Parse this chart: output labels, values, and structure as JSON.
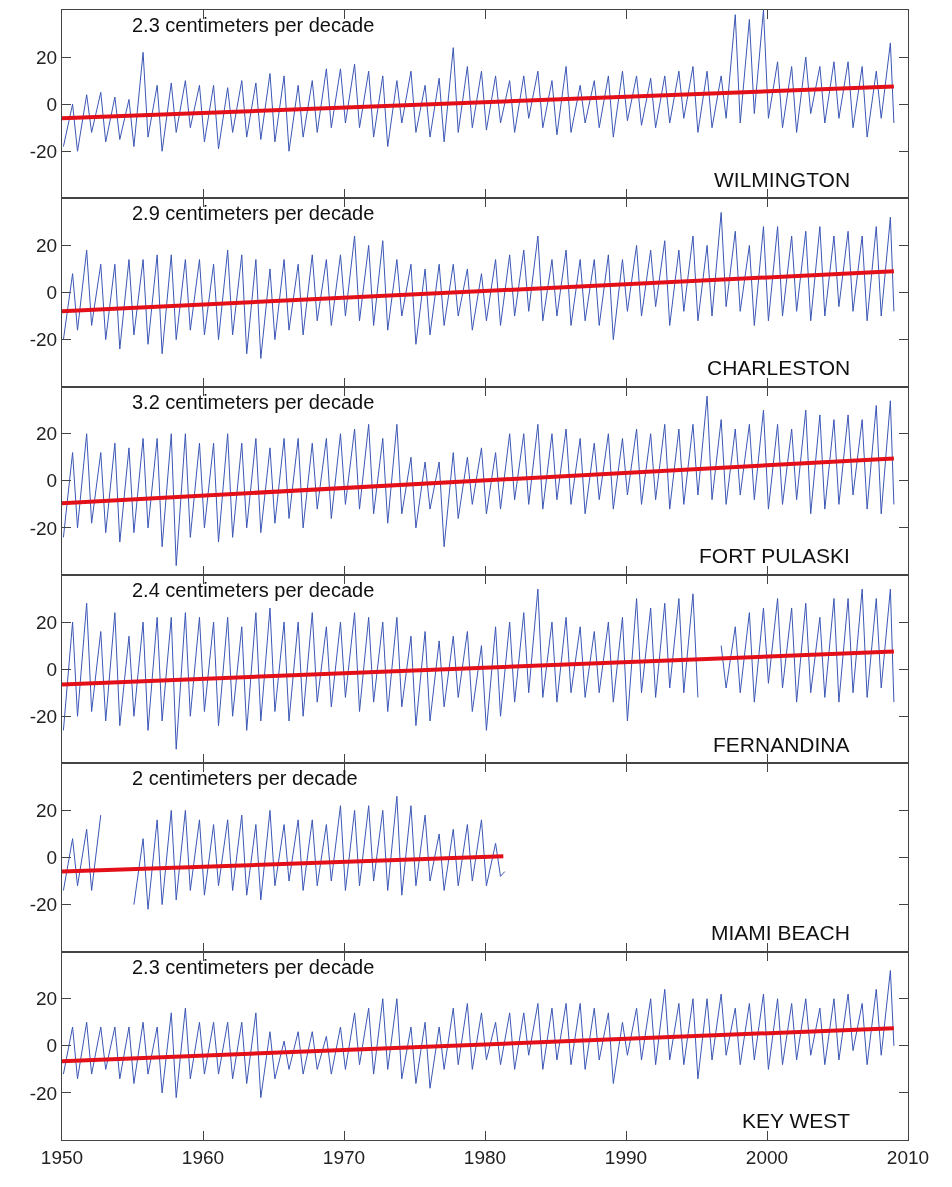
{
  "chart_data": [
    {
      "type": "line",
      "title": "WILMINGTON",
      "annotations": [
        "2.3 centimeters per decade"
      ],
      "xlim": [
        1950,
        2010
      ],
      "xticks": [
        1950,
        1960,
        1970,
        1980,
        1990,
        2000,
        2010
      ],
      "ylim": [
        -40,
        40
      ],
      "yticks": [
        -20,
        0,
        20
      ],
      "tick_labels": "y",
      "x": [
        1950.1,
        1950.75,
        1951.1,
        1951.75,
        1952.1,
        1952.75,
        1953.1,
        1953.75,
        1954.1,
        1954.75,
        1955.1,
        1955.75,
        1956.1,
        1956.75,
        1957.1,
        1957.75,
        1958.1,
        1958.75,
        1959.1,
        1959.75,
        1960.1,
        1960.75,
        1961.1,
        1961.75,
        1962.1,
        1962.75,
        1963.1,
        1963.75,
        1964.1,
        1964.75,
        1965.1,
        1965.75,
        1966.1,
        1966.75,
        1967.1,
        1967.75,
        1968.1,
        1968.75,
        1969.1,
        1969.75,
        1970.1,
        1970.75,
        1971.1,
        1971.75,
        1972.1,
        1972.75,
        1973.1,
        1973.75,
        1974.1,
        1974.75,
        1975.1,
        1975.75,
        1976.1,
        1976.75,
        1977.1,
        1977.75,
        1978.1,
        1978.75,
        1979.1,
        1979.75,
        1980.1,
        1980.75,
        1981.1,
        1981.75,
        1982.1,
        1982.75,
        1983.1,
        1983.75,
        1984.1,
        1984.75,
        1985.1,
        1985.75,
        1986.1,
        1986.75,
        1987.1,
        1987.75,
        1988.1,
        1988.75,
        1989.1,
        1989.75,
        1990.1,
        1990.75,
        1991.1,
        1991.75,
        1992.1,
        1992.75,
        1993.1,
        1993.75,
        1994.1,
        1994.75,
        1995.1,
        1995.75,
        1996.1,
        1996.75,
        1997.1,
        1997.75,
        1998.1,
        1998.75,
        1999.1,
        1999.75,
        2000.1,
        2000.75,
        2001.1,
        2001.75,
        2002.1,
        2002.75,
        2003.1,
        2003.75,
        2004.1,
        2004.75,
        2005.1,
        2005.75,
        2006.1,
        2006.75,
        2007.1,
        2007.75,
        2008.1,
        2008.75,
        2009
      ],
      "series": [
        {
          "color": "#3b57b5",
          "values": [
            -18,
            0,
            -20,
            4,
            -12,
            5,
            -16,
            3,
            -15,
            2,
            -18,
            22,
            -14,
            8,
            -20,
            9,
            -12,
            10,
            -10,
            8,
            -16,
            8,
            -19,
            7,
            -12,
            10,
            -14,
            9,
            -15,
            13,
            -16,
            12,
            -20,
            8,
            -14,
            10,
            -12,
            15,
            -10,
            15,
            -8,
            17,
            -10,
            14,
            -14,
            12,
            -18,
            10,
            -8,
            14,
            -12,
            8,
            -14,
            11,
            -16,
            24,
            -12,
            16,
            -10,
            14,
            -11,
            12,
            -8,
            10,
            -12,
            12,
            -6,
            14,
            -10,
            10,
            -13,
            16,
            -12,
            8,
            -8,
            10,
            -10,
            12,
            -14,
            14,
            -7,
            12,
            -9,
            11,
            -10,
            12,
            -8,
            14,
            -6,
            16,
            -12,
            14,
            -10,
            12,
            -6,
            38,
            -8,
            36,
            -4,
            40,
            -6,
            18,
            -10,
            16,
            -12,
            20,
            -4,
            16,
            -8,
            18,
            -6,
            18,
            -10,
            16,
            -14,
            14,
            -6,
            26,
            -8
          ]
        },
        {
          "color": "#e3101a",
          "x": [
            1950,
            2009
          ],
          "values": [
            -6,
            7.5
          ]
        }
      ]
    },
    {
      "type": "line",
      "title": "CHARLESTON",
      "annotations": [
        "2.9 centimeters per decade"
      ],
      "xlim": [
        1950,
        2010
      ],
      "xticks": [
        1950,
        1960,
        1970,
        1980,
        1990,
        2000,
        2010
      ],
      "ylim": [
        -40,
        40
      ],
      "yticks": [
        -20,
        0,
        20
      ],
      "tick_labels": "y",
      "x": [
        1950.1,
        1950.75,
        1951.1,
        1951.75,
        1952.1,
        1952.75,
        1953.1,
        1953.75,
        1954.1,
        1954.75,
        1955.1,
        1955.75,
        1956.1,
        1956.75,
        1957.1,
        1957.75,
        1958.1,
        1958.75,
        1959.1,
        1959.75,
        1960.1,
        1960.75,
        1961.1,
        1961.75,
        1962.1,
        1962.75,
        1963.1,
        1963.75,
        1964.1,
        1964.75,
        1965.1,
        1965.75,
        1966.1,
        1966.75,
        1967.1,
        1967.75,
        1968.1,
        1968.75,
        1969.1,
        1969.75,
        1970.1,
        1970.75,
        1971.1,
        1971.75,
        1972.1,
        1972.75,
        1973.1,
        1973.75,
        1974.1,
        1974.75,
        1975.1,
        1975.75,
        1976.1,
        1976.75,
        1977.1,
        1977.75,
        1978.1,
        1978.75,
        1979.1,
        1979.75,
        1980.1,
        1980.75,
        1981.1,
        1981.75,
        1982.1,
        1982.75,
        1983.1,
        1983.75,
        1984.1,
        1984.75,
        1985.1,
        1985.75,
        1986.1,
        1986.75,
        1987.1,
        1987.75,
        1988.1,
        1988.75,
        1989.1,
        1989.75,
        1990.1,
        1990.75,
        1991.1,
        1991.75,
        1992.1,
        1992.75,
        1993.1,
        1993.75,
        1994.1,
        1994.75,
        1995.1,
        1995.75,
        1996.1,
        1996.75,
        1997.1,
        1997.75,
        1998.1,
        1998.75,
        1999.1,
        1999.75,
        2000.1,
        2000.75,
        2001.1,
        2001.75,
        2002.1,
        2002.75,
        2003.1,
        2003.75,
        2004.1,
        2004.75,
        2005.1,
        2005.75,
        2006.1,
        2006.75,
        2007.1,
        2007.75,
        2008.1,
        2008.75,
        2009
      ],
      "series": [
        {
          "color": "#3b57b5",
          "values": [
            -20,
            8,
            -16,
            18,
            -14,
            12,
            -20,
            12,
            -24,
            14,
            -18,
            14,
            -22,
            16,
            -26,
            16,
            -20,
            14,
            -16,
            14,
            -18,
            12,
            -20,
            18,
            -18,
            16,
            -26,
            14,
            -28,
            10,
            -20,
            14,
            -16,
            12,
            -18,
            16,
            -12,
            14,
            -14,
            16,
            -10,
            24,
            -12,
            20,
            -14,
            22,
            -16,
            14,
            -10,
            12,
            -22,
            10,
            -18,
            12,
            -14,
            12,
            -10,
            10,
            -16,
            8,
            -12,
            14,
            -14,
            16,
            -10,
            18,
            -8,
            24,
            -12,
            14,
            -10,
            18,
            -14,
            14,
            -12,
            14,
            -14,
            16,
            -20,
            14,
            -8,
            20,
            -10,
            18,
            -6,
            22,
            -14,
            18,
            -8,
            24,
            -12,
            20,
            -10,
            34,
            -6,
            26,
            -8,
            20,
            -14,
            28,
            -12,
            28,
            -10,
            24,
            -8,
            26,
            -12,
            28,
            -10,
            24,
            -6,
            26,
            -8,
            24,
            -12,
            28,
            -10,
            32,
            -8
          ]
        },
        {
          "color": "#e3101a",
          "x": [
            1950,
            2009
          ],
          "values": [
            -8,
            9
          ]
        }
      ]
    },
    {
      "type": "line",
      "title": "FORT PULASKI",
      "annotations": [
        "3.2 centimeters per decade"
      ],
      "xlim": [
        1950,
        2010
      ],
      "xticks": [
        1950,
        1960,
        1970,
        1980,
        1990,
        2000,
        2010
      ],
      "ylim": [
        -40,
        40
      ],
      "yticks": [
        -20,
        0,
        20
      ],
      "tick_labels": "y",
      "x": [
        1950.1,
        1950.75,
        1951.1,
        1951.75,
        1952.1,
        1952.75,
        1953.1,
        1953.75,
        1954.1,
        1954.75,
        1955.1,
        1955.75,
        1956.1,
        1956.75,
        1957.1,
        1957.75,
        1958.1,
        1958.75,
        1959.1,
        1959.75,
        1960.1,
        1960.75,
        1961.1,
        1961.75,
        1962.1,
        1962.75,
        1963.1,
        1963.75,
        1964.1,
        1964.75,
        1965.1,
        1965.75,
        1966.1,
        1966.75,
        1967.1,
        1967.75,
        1968.1,
        1968.75,
        1969.1,
        1969.75,
        1970.1,
        1970.75,
        1971.1,
        1971.75,
        1972.1,
        1972.75,
        1973.1,
        1973.75,
        1974.1,
        1974.75,
        1975.1,
        1975.75,
        1976.1,
        1976.75,
        1977.1,
        1977.75,
        1978.1,
        1978.75,
        1979.1,
        1979.75,
        1980.1,
        1980.75,
        1981.1,
        1981.75,
        1982.1,
        1982.75,
        1983.1,
        1983.75,
        1984.1,
        1984.75,
        1985.1,
        1985.75,
        1986.1,
        1986.75,
        1987.1,
        1987.75,
        1988.1,
        1988.75,
        1989.1,
        1989.75,
        1990.1,
        1990.75,
        1991.1,
        1991.75,
        1992.1,
        1992.75,
        1993.1,
        1993.75,
        1994.1,
        1994.75,
        1995.1,
        1995.75,
        1996.1,
        1996.75,
        1997.1,
        1997.75,
        1998.1,
        1998.75,
        1999.1,
        1999.75,
        2000.1,
        2000.75,
        2001.1,
        2001.75,
        2002.1,
        2002.75,
        2003.1,
        2003.75,
        2004.1,
        2004.75,
        2005.1,
        2005.75,
        2006.1,
        2006.75,
        2007.1,
        2007.75,
        2008.1,
        2008.75,
        2009
      ],
      "series": [
        {
          "color": "#3b57b5",
          "values": [
            -24,
            12,
            -20,
            20,
            -18,
            12,
            -22,
            16,
            -26,
            14,
            -22,
            18,
            -20,
            18,
            -28,
            20,
            -36,
            20,
            -24,
            16,
            -20,
            16,
            -26,
            20,
            -24,
            16,
            -20,
            18,
            -22,
            14,
            -18,
            18,
            -16,
            18,
            -20,
            16,
            -12,
            18,
            -16,
            20,
            -10,
            22,
            -12,
            24,
            -14,
            18,
            -18,
            24,
            -14,
            10,
            -20,
            8,
            -12,
            8,
            -28,
            12,
            -16,
            10,
            -10,
            14,
            -14,
            12,
            -12,
            20,
            -8,
            20,
            -10,
            24,
            -12,
            20,
            -8,
            22,
            -10,
            18,
            -14,
            16,
            -8,
            20,
            -12,
            18,
            -6,
            22,
            -10,
            20,
            -8,
            24,
            -12,
            22,
            -10,
            24,
            -6,
            36,
            -8,
            26,
            -10,
            22,
            -6,
            24,
            -8,
            30,
            -12,
            24,
            -10,
            22,
            -8,
            30,
            -14,
            28,
            -12,
            26,
            -10,
            28,
            -6,
            26,
            -12,
            32,
            -14,
            34,
            -10
          ]
        },
        {
          "color": "#e3101a",
          "x": [
            1950,
            2009
          ],
          "values": [
            -9.5,
            9.5
          ]
        }
      ]
    },
    {
      "type": "line",
      "title": "FERNANDINA",
      "annotations": [
        "2.4 centimeters per decade"
      ],
      "xlim": [
        1950,
        2010
      ],
      "xticks": [
        1950,
        1960,
        1970,
        1980,
        1990,
        2000,
        2010
      ],
      "ylim": [
        -40,
        40
      ],
      "yticks": [
        -20,
        0,
        20
      ],
      "tick_labels": "y",
      "x": [
        1950.1,
        1950.75,
        1951.1,
        1951.75,
        1952.1,
        1952.75,
        1953.1,
        1953.75,
        1954.1,
        1954.75,
        1955.1,
        1955.75,
        1956.1,
        1956.75,
        1957.1,
        1957.75,
        1958.1,
        1958.75,
        1959.1,
        1959.75,
        1960.1,
        1960.75,
        1961.1,
        1961.75,
        1962.1,
        1962.75,
        1963.1,
        1963.75,
        1964.1,
        1964.75,
        1965.1,
        1965.75,
        1966.1,
        1966.75,
        1967.1,
        1967.75,
        1968.1,
        1968.75,
        1969.1,
        1969.75,
        1970.1,
        1970.75,
        1971.1,
        1971.75,
        1972.1,
        1972.75,
        1973.1,
        1973.75,
        1974.1,
        1974.75,
        1975.1,
        1975.75,
        1976.1,
        1976.75,
        1977.1,
        1977.75,
        1978.1,
        1978.75,
        1979.1,
        1979.75,
        1980.1,
        1980.75,
        1981.1,
        1981.75,
        1982.1,
        1982.75,
        1983.1,
        1983.75,
        1984.1,
        1984.75,
        1985.1,
        1985.75,
        1986.1,
        1986.75,
        1987.1,
        1987.75,
        1988.1,
        1988.75,
        1989.1,
        1989.75,
        1990.1,
        1990.75,
        1991.1,
        1991.75,
        1992.1,
        1992.75,
        1993.1,
        1993.75,
        1994.1,
        1994.75,
        1995.1,
        1995.75,
        1996.1,
        1996.75,
        1997.1,
        1997.75,
        1998.1,
        1998.75,
        1999.1,
        1999.75,
        2000.1,
        2000.75,
        2001.1,
        2001.75,
        2002.1,
        2002.75,
        2003.1,
        2003.75,
        2004.1,
        2004.75,
        2005.1,
        2005.75,
        2006.1,
        2006.75,
        2007.1,
        2007.75,
        2008.1,
        2008.75,
        2009
      ],
      "series": [
        {
          "color": "#3b57b5",
          "values": [
            -26,
            20,
            -20,
            28,
            -18,
            16,
            -22,
            24,
            -24,
            14,
            -20,
            20,
            -26,
            22,
            -22,
            22,
            -34,
            24,
            -20,
            22,
            -18,
            20,
            -24,
            22,
            -20,
            18,
            -26,
            24,
            -22,
            26,
            -18,
            20,
            -22,
            20,
            -20,
            24,
            -14,
            18,
            -16,
            20,
            -12,
            24,
            -18,
            22,
            -14,
            20,
            -18,
            22,
            -16,
            14,
            -24,
            16,
            -22,
            12,
            -16,
            14,
            -12,
            16,
            -18,
            10,
            -26,
            18,
            -20,
            20,
            -14,
            24,
            -10,
            34,
            -12,
            20,
            -14,
            22,
            -10,
            18,
            -12,
            16,
            -10,
            20,
            -14,
            22,
            -22,
            30,
            -10,
            26,
            -12,
            28,
            -8,
            30,
            -10,
            32,
            -12,
            null,
            null,
            10,
            -8,
            18,
            -10,
            24,
            -14,
            26,
            -6,
            30,
            -8,
            26,
            -14,
            28,
            -10,
            22,
            -12,
            30,
            -14,
            30,
            -10,
            34,
            -12,
            30,
            -8,
            34,
            -14
          ]
        },
        {
          "color": "#e3101a",
          "x": [
            1950,
            2009
          ],
          "values": [
            -6.5,
            7.5
          ]
        }
      ]
    },
    {
      "type": "line",
      "title": "MIAMI BEACH",
      "annotations": [
        "2 centimeters per decade"
      ],
      "xlim": [
        1950,
        2010
      ],
      "xticks": [
        1950,
        1960,
        1970,
        1980,
        1990,
        2000,
        2010
      ],
      "ylim": [
        -40,
        40
      ],
      "yticks": [
        -20,
        0,
        20
      ],
      "tick_labels": "y",
      "x": [
        1950.1,
        1950.75,
        1951.1,
        1951.75,
        1952.1,
        1952.75,
        1953.1,
        1953.75,
        1954.1,
        1954.75,
        1955.1,
        1955.75,
        1956.1,
        1956.75,
        1957.1,
        1957.75,
        1958.1,
        1958.75,
        1959.1,
        1959.75,
        1960.1,
        1960.75,
        1961.1,
        1961.75,
        1962.1,
        1962.75,
        1963.1,
        1963.75,
        1964.1,
        1964.75,
        1965.1,
        1965.75,
        1966.1,
        1966.75,
        1967.1,
        1967.75,
        1968.1,
        1968.75,
        1969.1,
        1969.75,
        1970.1,
        1970.75,
        1971.1,
        1971.75,
        1972.1,
        1972.75,
        1973.1,
        1973.75,
        1974.1,
        1974.75,
        1975.1,
        1975.75,
        1976.1,
        1976.75,
        1977.1,
        1977.75,
        1978.1,
        1978.75,
        1979.1,
        1979.75,
        1980.1,
        1980.75,
        1981.1,
        1981.4
      ],
      "series": [
        {
          "color": "#3b57b5",
          "values": [
            -14,
            8,
            -12,
            12,
            -14,
            18,
            null,
            null,
            null,
            null,
            -20,
            8,
            -22,
            16,
            -20,
            20,
            -18,
            20,
            -14,
            16,
            -16,
            14,
            -12,
            16,
            -14,
            18,
            -16,
            14,
            -18,
            20,
            -12,
            14,
            -10,
            16,
            -14,
            16,
            -12,
            14,
            -10,
            22,
            -14,
            20,
            -12,
            22,
            -10,
            20,
            -14,
            26,
            -16,
            22,
            -12,
            18,
            -10,
            10,
            -14,
            12,
            -12,
            14,
            -10,
            16,
            -12,
            6,
            -8,
            -6
          ]
        },
        {
          "color": "#e3101a",
          "x": [
            1950,
            1981.3
          ],
          "values": [
            -6,
            0.5
          ]
        }
      ]
    },
    {
      "type": "line",
      "title": "KEY WEST",
      "annotations": [
        "2.3 centimeters per decade"
      ],
      "xlim": [
        1950,
        2010
      ],
      "xticks": [
        1950,
        1960,
        1970,
        1980,
        1990,
        2000,
        2010
      ],
      "ylim": [
        -40,
        40
      ],
      "yticks": [
        -20,
        0,
        20
      ],
      "x": [
        1950.1,
        1950.75,
        1951.1,
        1951.75,
        1952.1,
        1952.75,
        1953.1,
        1953.75,
        1954.1,
        1954.75,
        1955.1,
        1955.75,
        1956.1,
        1956.75,
        1957.1,
        1957.75,
        1958.1,
        1958.75,
        1959.1,
        1959.75,
        1960.1,
        1960.75,
        1961.1,
        1961.75,
        1962.1,
        1962.75,
        1963.1,
        1963.75,
        1964.1,
        1964.75,
        1965.1,
        1965.75,
        1966.1,
        1966.75,
        1967.1,
        1967.75,
        1968.1,
        1968.75,
        1969.1,
        1969.75,
        1970.1,
        1970.75,
        1971.1,
        1971.75,
        1972.1,
        1972.75,
        1973.1,
        1973.75,
        1974.1,
        1974.75,
        1975.1,
        1975.75,
        1976.1,
        1976.75,
        1977.1,
        1977.75,
        1978.1,
        1978.75,
        1979.1,
        1979.75,
        1980.1,
        1980.75,
        1981.1,
        1981.75,
        1982.1,
        1982.75,
        1983.1,
        1983.75,
        1984.1,
        1984.75,
        1985.1,
        1985.75,
        1986.1,
        1986.75,
        1987.1,
        1987.75,
        1988.1,
        1988.75,
        1989.1,
        1989.75,
        1990.1,
        1990.75,
        1991.1,
        1991.75,
        1992.1,
        1992.75,
        1993.1,
        1993.75,
        1994.1,
        1994.75,
        1995.1,
        1995.75,
        1996.1,
        1996.75,
        1997.1,
        1997.75,
        1998.1,
        1998.75,
        1999.1,
        1999.75,
        2000.1,
        2000.75,
        2001.1,
        2001.75,
        2002.1,
        2002.75,
        2003.1,
        2003.75,
        2004.1,
        2004.75,
        2005.1,
        2005.75,
        2006.1,
        2006.75,
        2007.1,
        2007.75,
        2008.1,
        2008.75,
        2009
      ],
      "series": [
        {
          "color": "#3b57b5",
          "values": [
            -12,
            8,
            -14,
            10,
            -12,
            8,
            -10,
            8,
            -14,
            8,
            -16,
            10,
            -12,
            8,
            -20,
            14,
            -22,
            16,
            -14,
            10,
            -12,
            10,
            -12,
            10,
            -14,
            10,
            -16,
            14,
            -22,
            6,
            -14,
            2,
            -10,
            6,
            -12,
            6,
            -10,
            4,
            -12,
            8,
            -10,
            14,
            -8,
            16,
            -12,
            20,
            -10,
            20,
            -14,
            8,
            -16,
            10,
            -18,
            8,
            -10,
            16,
            -8,
            18,
            -10,
            14,
            -6,
            10,
            -8,
            14,
            -10,
            14,
            -4,
            18,
            -10,
            16,
            -6,
            18,
            -8,
            18,
            -10,
            16,
            -6,
            14,
            -16,
            10,
            -4,
            16,
            -6,
            20,
            -8,
            24,
            -6,
            18,
            -8,
            20,
            -14,
            20,
            -6,
            22,
            -4,
            16,
            -8,
            18,
            -6,
            22,
            -10,
            20,
            -8,
            18,
            -6,
            20,
            -4,
            16,
            -8,
            20,
            -6,
            22,
            -2,
            18,
            -8,
            24,
            -4,
            32,
            0
          ]
        },
        {
          "color": "#e3101a",
          "x": [
            1950,
            2009
          ],
          "values": [
            -6.5,
            7.5
          ]
        }
      ]
    }
  ]
}
